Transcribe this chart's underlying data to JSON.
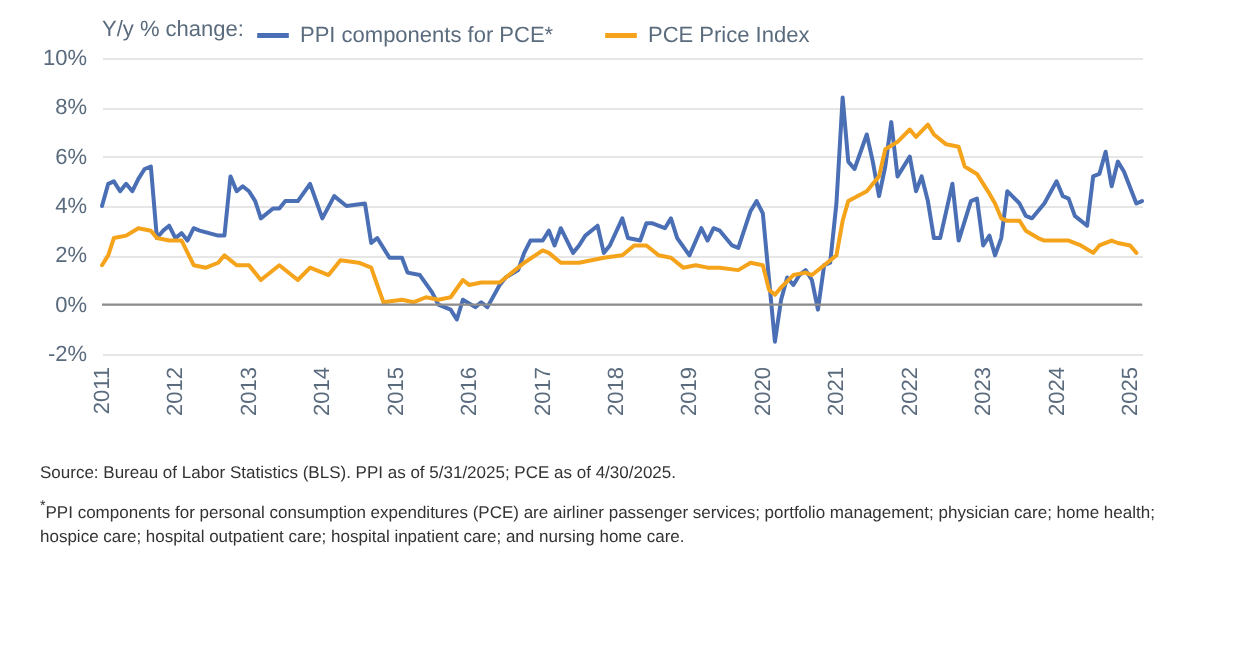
{
  "chart_data": {
    "type": "line",
    "legend_title": "Y/y % change:",
    "xlim": [
      "2011-01",
      "2025-03"
    ],
    "xticks": [
      "2011",
      "2012",
      "2013",
      "2014",
      "2015",
      "2016",
      "2017",
      "2018",
      "2019",
      "2020",
      "2021",
      "2022",
      "2023",
      "2024",
      "2025"
    ],
    "ylim": [
      -2,
      10
    ],
    "yticks": [
      {
        "value": -2,
        "label": "-2%"
      },
      {
        "value": 0,
        "label": "0%"
      },
      {
        "value": 2,
        "label": "2%"
      },
      {
        "value": 4,
        "label": "4%"
      },
      {
        "value": 6,
        "label": "6%"
      },
      {
        "value": 8,
        "label": "8%"
      },
      {
        "value": 10,
        "label": "10%"
      }
    ],
    "grid": "y",
    "legend": "top left",
    "ref_lines": [
      {
        "axis": "y",
        "value": 0,
        "color": "#8c8c8c"
      }
    ],
    "series": [
      {
        "name": "PPI components for PCE*",
        "color": "#4a6fb5",
        "x": [
          "2011-01",
          "2011-02",
          "2011-03",
          "2011-04",
          "2011-05",
          "2011-06",
          "2011-07",
          "2011-08",
          "2011-09",
          "2011-10",
          "2011-11",
          "2011-12",
          "2012-01",
          "2012-02",
          "2012-03",
          "2012-04",
          "2012-05",
          "2012-08",
          "2012-09",
          "2012-10",
          "2012-11",
          "2012-12",
          "2013-01",
          "2013-02",
          "2013-03",
          "2013-05",
          "2013-06",
          "2013-07",
          "2013-09",
          "2013-11",
          "2014-01",
          "2014-03",
          "2014-05",
          "2014-08",
          "2014-09",
          "2014-10",
          "2014-12",
          "2015-02",
          "2015-03",
          "2015-05",
          "2015-07",
          "2015-08",
          "2015-10",
          "2015-11",
          "2015-12",
          "2016-02",
          "2016-03",
          "2016-04",
          "2016-06",
          "2016-07",
          "2016-09",
          "2016-10",
          "2016-11",
          "2017-01",
          "2017-02",
          "2017-03",
          "2017-04",
          "2017-06",
          "2017-07",
          "2017-08",
          "2017-10",
          "2017-11",
          "2017-12",
          "2018-02",
          "2018-03",
          "2018-05",
          "2018-06",
          "2018-07",
          "2018-09",
          "2018-10",
          "2018-11",
          "2019-01",
          "2019-03",
          "2019-04",
          "2019-05",
          "2019-06",
          "2019-08",
          "2019-09",
          "2019-11",
          "2019-12",
          "2020-01",
          "2020-02",
          "2020-03",
          "2020-04",
          "2020-05",
          "2020-06",
          "2020-07",
          "2020-08",
          "2020-09",
          "2020-10",
          "2020-11",
          "2020-12",
          "2021-01",
          "2021-02",
          "2021-03",
          "2021-04",
          "2021-06",
          "2021-07",
          "2021-08",
          "2021-09",
          "2021-10",
          "2021-11",
          "2022-01",
          "2022-02",
          "2022-03",
          "2022-04",
          "2022-05",
          "2022-06",
          "2022-08",
          "2022-09",
          "2022-11",
          "2022-12",
          "2023-01",
          "2023-02",
          "2023-03",
          "2023-04",
          "2023-05",
          "2023-07",
          "2023-08",
          "2023-09",
          "2023-11",
          "2024-01",
          "2024-02",
          "2024-03",
          "2024-04",
          "2024-06",
          "2024-07",
          "2024-08",
          "2024-09",
          "2024-10",
          "2024-11",
          "2024-12",
          "2025-02",
          "2025-03"
        ],
        "values": [
          4.0,
          4.9,
          5.0,
          4.6,
          4.9,
          4.6,
          5.1,
          5.5,
          5.6,
          2.7,
          3.0,
          3.2,
          2.7,
          2.9,
          2.6,
          3.1,
          3.0,
          2.8,
          2.8,
          5.2,
          4.6,
          4.8,
          4.6,
          4.2,
          3.5,
          3.9,
          3.9,
          4.2,
          4.2,
          4.9,
          3.5,
          4.4,
          4.0,
          4.1,
          2.5,
          2.7,
          1.9,
          1.9,
          1.3,
          1.2,
          0.5,
          0.0,
          -0.2,
          -0.6,
          0.2,
          -0.1,
          0.1,
          -0.1,
          0.8,
          1.1,
          1.4,
          2.1,
          2.6,
          2.6,
          3.0,
          2.4,
          3.1,
          2.1,
          2.4,
          2.8,
          3.2,
          2.1,
          2.4,
          3.5,
          2.7,
          2.6,
          3.3,
          3.3,
          3.1,
          3.5,
          2.7,
          2.0,
          3.1,
          2.6,
          3.1,
          3.0,
          2.4,
          2.3,
          3.8,
          4.2,
          3.7,
          1.0,
          -1.5,
          0.2,
          1.1,
          0.8,
          1.2,
          1.4,
          1.0,
          -0.2,
          1.6,
          1.7,
          4.1,
          8.4,
          5.8,
          5.5,
          6.9,
          5.8,
          4.4,
          5.6,
          7.4,
          5.2,
          6.0,
          4.6,
          5.2,
          4.2,
          2.7,
          2.7,
          4.9,
          2.6,
          4.2,
          4.3,
          2.4,
          2.8,
          2.0,
          2.7,
          4.6,
          4.1,
          3.6,
          3.5,
          4.1,
          5.0,
          4.4,
          4.3,
          3.6,
          3.2,
          5.2,
          5.3,
          6.2,
          4.8,
          5.8,
          5.4,
          4.1,
          4.2
        ]
      },
      {
        "name": "PCE Price Index",
        "color": "#f5a31a",
        "x": [
          "2011-01",
          "2011-02",
          "2011-03",
          "2011-05",
          "2011-07",
          "2011-09",
          "2011-10",
          "2011-12",
          "2012-02",
          "2012-04",
          "2012-06",
          "2012-08",
          "2012-09",
          "2012-11",
          "2013-01",
          "2013-03",
          "2013-06",
          "2013-09",
          "2013-11",
          "2014-02",
          "2014-04",
          "2014-07",
          "2014-09",
          "2014-10",
          "2014-11",
          "2015-02",
          "2015-04",
          "2015-06",
          "2015-08",
          "2015-10",
          "2015-12",
          "2016-01",
          "2016-03",
          "2016-06",
          "2016-08",
          "2016-10",
          "2017-01",
          "2017-02",
          "2017-04",
          "2017-07",
          "2017-09",
          "2017-11",
          "2018-02",
          "2018-04",
          "2018-06",
          "2018-08",
          "2018-10",
          "2018-12",
          "2019-02",
          "2019-04",
          "2019-06",
          "2019-09",
          "2019-11",
          "2020-01",
          "2020-02",
          "2020-03",
          "2020-04",
          "2020-06",
          "2020-08",
          "2020-09",
          "2020-11",
          "2021-01",
          "2021-02",
          "2021-03",
          "2021-06",
          "2021-08",
          "2021-09",
          "2021-11",
          "2022-01",
          "2022-02",
          "2022-04",
          "2022-05",
          "2022-07",
          "2022-09",
          "2022-10",
          "2022-12",
          "2023-02",
          "2023-03",
          "2023-04",
          "2023-05",
          "2023-07",
          "2023-08",
          "2023-10",
          "2023-11",
          "2024-01",
          "2024-03",
          "2024-05",
          "2024-07",
          "2024-08",
          "2024-10",
          "2024-11",
          "2025-01",
          "2025-02"
        ],
        "values": [
          1.6,
          2.0,
          2.7,
          2.8,
          3.1,
          3.0,
          2.7,
          2.6,
          2.6,
          1.6,
          1.5,
          1.7,
          2.0,
          1.6,
          1.6,
          1.0,
          1.6,
          1.0,
          1.5,
          1.2,
          1.8,
          1.7,
          1.5,
          0.8,
          0.1,
          0.2,
          0.1,
          0.3,
          0.2,
          0.3,
          1.0,
          0.8,
          0.9,
          0.9,
          1.3,
          1.7,
          2.2,
          2.1,
          1.7,
          1.7,
          1.8,
          1.9,
          2.0,
          2.4,
          2.4,
          2.0,
          1.9,
          1.5,
          1.6,
          1.5,
          1.5,
          1.4,
          1.7,
          1.6,
          0.6,
          0.4,
          0.7,
          1.2,
          1.3,
          1.2,
          1.6,
          2.0,
          3.4,
          4.2,
          4.6,
          5.2,
          6.3,
          6.6,
          7.1,
          6.8,
          7.3,
          6.9,
          6.5,
          6.4,
          5.6,
          5.3,
          4.5,
          4.1,
          3.5,
          3.4,
          3.4,
          3.0,
          2.7,
          2.6,
          2.6,
          2.6,
          2.4,
          2.1,
          2.4,
          2.6,
          2.5,
          2.4,
          2.1
        ]
      }
    ],
    "annotations": [
      "Source: Bureau of Labor Statistics (BLS). PPI as of 5/31/2025; PCE as of 4/30/2025.",
      "$^{*}$PPI components for personal consumption expenditures (PCE) are airliner passenger services; portfolio management; physician care; home health; hospice care; hospital outpatient care; hospital inpatient care; and nursing home care."
    ]
  }
}
